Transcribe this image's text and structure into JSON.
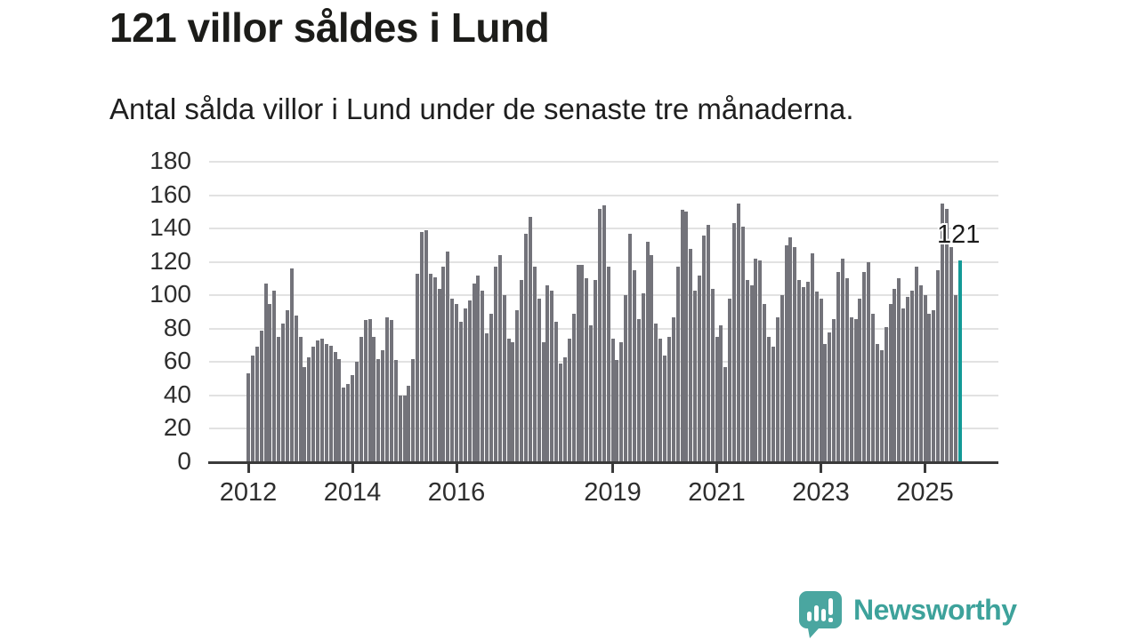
{
  "header": {
    "title": "121 villor såldes i Lund",
    "subtitle": "Antal sålda villor i Lund under de senaste tre månaderna."
  },
  "chart_data": {
    "type": "bar",
    "title": "121 villor såldes i Lund",
    "subtitle": "Antal sålda villor i Lund under de senaste tre månaderna.",
    "ylim": [
      0,
      180
    ],
    "y_ticks": [
      0,
      20,
      40,
      60,
      80,
      100,
      120,
      140,
      160,
      180
    ],
    "grid": true,
    "x_tick_labels": [
      "2012",
      "2014",
      "2016",
      "2019",
      "2021",
      "2023",
      "2025"
    ],
    "x_tick_month_index": [
      0,
      24,
      48,
      84,
      108,
      132,
      156
    ],
    "values": [
      53,
      64,
      69,
      79,
      107,
      95,
      103,
      75,
      83,
      91,
      116,
      88,
      75,
      57,
      63,
      69,
      73,
      74,
      71,
      70,
      66,
      62,
      45,
      47,
      52,
      60,
      75,
      85,
      86,
      75,
      62,
      67,
      87,
      85,
      61,
      40,
      40,
      46,
      62,
      113,
      138,
      139,
      113,
      111,
      104,
      117,
      126,
      98,
      95,
      84,
      92,
      97,
      107,
      112,
      103,
      77,
      89,
      117,
      124,
      100,
      74,
      72,
      91,
      109,
      137,
      147,
      117,
      98,
      72,
      106,
      103,
      84,
      59,
      63,
      74,
      89,
      118,
      118,
      110,
      82,
      109,
      152,
      154,
      117,
      74,
      61,
      72,
      100,
      137,
      115,
      86,
      101,
      132,
      124,
      83,
      74,
      64,
      75,
      87,
      117,
      151,
      150,
      128,
      103,
      112,
      136,
      142,
      104,
      75,
      82,
      57,
      98,
      143,
      155,
      141,
      109,
      106,
      122,
      121,
      95,
      75,
      69,
      87,
      100,
      130,
      135,
      129,
      109,
      105,
      108,
      125,
      102,
      98,
      71,
      78,
      86,
      114,
      122,
      110,
      87,
      86,
      98,
      114,
      120,
      89,
      71,
      67,
      81,
      95,
      104,
      110,
      92,
      99,
      103,
      117,
      106,
      100,
      89,
      91,
      115,
      155,
      152,
      129,
      100,
      121
    ],
    "highlight_index": 164,
    "highlight_label": "121",
    "bar_color": "#73737a",
    "highlight_color": "#139a97",
    "grid_color": "#e2e2e2",
    "axis_color": "#3a3a3a",
    "tick_label_color": "#2e2e2e"
  },
  "footer": {
    "brand": "Newsworthy",
    "logo_color": "#4aa6a0"
  }
}
